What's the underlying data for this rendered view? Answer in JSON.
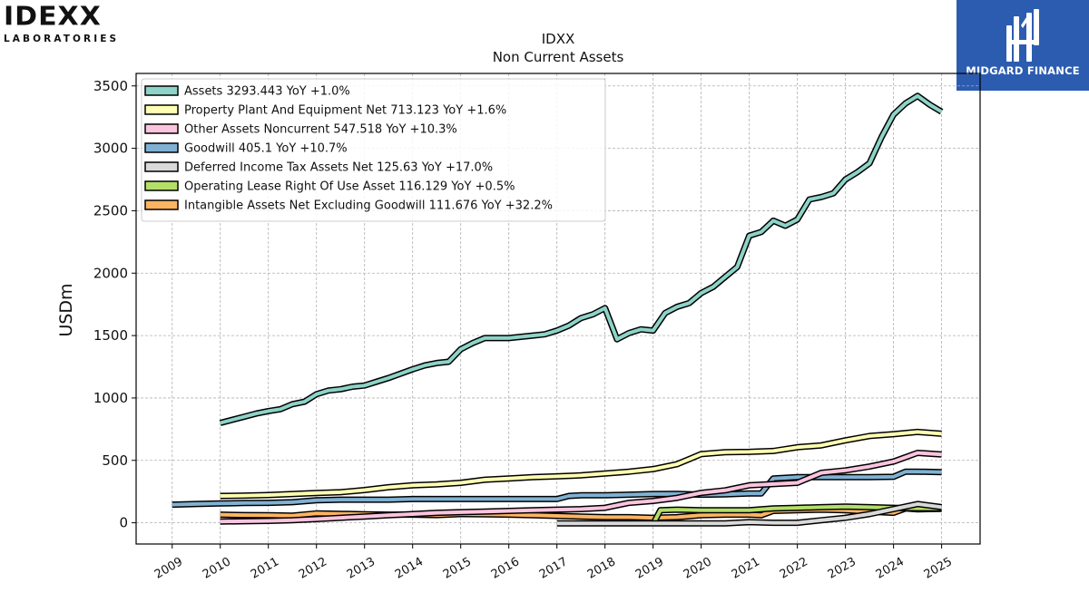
{
  "logos": {
    "left_main": "IDEXX",
    "left_sub": "LABORATORIES",
    "right_brand": "MIDGARD FINANCE",
    "right_bg": "#2b5cb0"
  },
  "chart_data": {
    "type": "line",
    "title": "IDXX",
    "subtitle": "Non Current  Assets",
    "ylabel": "USDm",
    "xlabel": "",
    "xlim": [
      2008.25,
      2025.8
    ],
    "ylim": [
      -170,
      3600
    ],
    "x_ticks": [
      "2009",
      "2010",
      "2011",
      "2012",
      "2013",
      "2014",
      "2015",
      "2016",
      "2017",
      "2018",
      "2019",
      "2020",
      "2021",
      "2022",
      "2023",
      "2024",
      "2025"
    ],
    "y_ticks": [
      0,
      500,
      1000,
      1500,
      2000,
      2500,
      3000,
      3500
    ],
    "grid": true,
    "legend_position": "top-left",
    "series": [
      {
        "name": "Assets",
        "legend": "Assets  3293.443 YoY +1.0%",
        "color": "#8dd3c7",
        "points": [
          [
            2010.0,
            800
          ],
          [
            2010.25,
            825
          ],
          [
            2010.5,
            850
          ],
          [
            2010.75,
            875
          ],
          [
            2011.0,
            895
          ],
          [
            2011.25,
            910
          ],
          [
            2011.5,
            950
          ],
          [
            2011.75,
            970
          ],
          [
            2012.0,
            1030
          ],
          [
            2012.25,
            1060
          ],
          [
            2012.5,
            1070
          ],
          [
            2012.75,
            1090
          ],
          [
            2013.0,
            1100
          ],
          [
            2013.25,
            1130
          ],
          [
            2013.5,
            1160
          ],
          [
            2013.75,
            1195
          ],
          [
            2014.0,
            1230
          ],
          [
            2014.25,
            1260
          ],
          [
            2014.5,
            1280
          ],
          [
            2014.75,
            1290
          ],
          [
            2015.0,
            1390
          ],
          [
            2015.25,
            1440
          ],
          [
            2015.5,
            1480
          ],
          [
            2015.75,
            1480
          ],
          [
            2016.0,
            1480
          ],
          [
            2016.25,
            1490
          ],
          [
            2016.5,
            1500
          ],
          [
            2016.75,
            1510
          ],
          [
            2017.0,
            1540
          ],
          [
            2017.25,
            1580
          ],
          [
            2017.5,
            1640
          ],
          [
            2017.75,
            1670
          ],
          [
            2018.0,
            1720
          ],
          [
            2018.25,
            1470
          ],
          [
            2018.5,
            1520
          ],
          [
            2018.75,
            1550
          ],
          [
            2019.0,
            1540
          ],
          [
            2019.25,
            1680
          ],
          [
            2019.5,
            1730
          ],
          [
            2019.75,
            1760
          ],
          [
            2020.0,
            1840
          ],
          [
            2020.25,
            1890
          ],
          [
            2020.5,
            1970
          ],
          [
            2020.75,
            2050
          ],
          [
            2021.0,
            2300
          ],
          [
            2021.25,
            2330
          ],
          [
            2021.5,
            2420
          ],
          [
            2021.75,
            2380
          ],
          [
            2022.0,
            2430
          ],
          [
            2022.25,
            2590
          ],
          [
            2022.5,
            2610
          ],
          [
            2022.75,
            2640
          ],
          [
            2023.0,
            2750
          ],
          [
            2023.25,
            2810
          ],
          [
            2023.5,
            2880
          ],
          [
            2023.75,
            3090
          ],
          [
            2024.0,
            3270
          ],
          [
            2024.25,
            3360
          ],
          [
            2024.5,
            3420
          ],
          [
            2024.75,
            3350
          ],
          [
            2025.0,
            3293
          ]
        ]
      },
      {
        "name": "Property Plant And Equipment Net",
        "legend": "Property Plant And Equipment Net  713.123 YoY +1.6%",
        "color": "#ffffb3",
        "points": [
          [
            2010.0,
            215
          ],
          [
            2010.5,
            218
          ],
          [
            2011.0,
            222
          ],
          [
            2011.5,
            230
          ],
          [
            2012.0,
            238
          ],
          [
            2012.5,
            245
          ],
          [
            2013.0,
            262
          ],
          [
            2013.5,
            285
          ],
          [
            2014.0,
            300
          ],
          [
            2014.5,
            308
          ],
          [
            2015.0,
            320
          ],
          [
            2015.5,
            345
          ],
          [
            2016.0,
            355
          ],
          [
            2016.5,
            365
          ],
          [
            2017.0,
            372
          ],
          [
            2017.5,
            380
          ],
          [
            2018.0,
            395
          ],
          [
            2018.5,
            410
          ],
          [
            2019.0,
            430
          ],
          [
            2019.5,
            470
          ],
          [
            2020.0,
            550
          ],
          [
            2020.5,
            565
          ],
          [
            2021.0,
            568
          ],
          [
            2021.5,
            575
          ],
          [
            2022.0,
            605
          ],
          [
            2022.5,
            620
          ],
          [
            2023.0,
            660
          ],
          [
            2023.5,
            695
          ],
          [
            2024.0,
            710
          ],
          [
            2024.5,
            728
          ],
          [
            2025.0,
            713
          ]
        ]
      },
      {
        "name": "Other Assets Noncurrent",
        "legend": "Other Assets Noncurrent  547.518 YoY +10.3%",
        "color": "#fbc4de",
        "points": [
          [
            2010.0,
            10
          ],
          [
            2010.5,
            12
          ],
          [
            2011.0,
            15
          ],
          [
            2011.5,
            20
          ],
          [
            2012.0,
            30
          ],
          [
            2012.5,
            40
          ],
          [
            2013.0,
            50
          ],
          [
            2013.5,
            60
          ],
          [
            2014.0,
            70
          ],
          [
            2014.5,
            80
          ],
          [
            2015.0,
            85
          ],
          [
            2015.5,
            90
          ],
          [
            2016.0,
            95
          ],
          [
            2016.5,
            100
          ],
          [
            2017.0,
            105
          ],
          [
            2017.5,
            110
          ],
          [
            2018.0,
            120
          ],
          [
            2018.5,
            160
          ],
          [
            2019.0,
            175
          ],
          [
            2019.5,
            200
          ],
          [
            2020.0,
            240
          ],
          [
            2020.5,
            260
          ],
          [
            2021.0,
            300
          ],
          [
            2021.5,
            310
          ],
          [
            2022.0,
            320
          ],
          [
            2022.5,
            400
          ],
          [
            2023.0,
            420
          ],
          [
            2023.5,
            450
          ],
          [
            2024.0,
            490
          ],
          [
            2024.5,
            560
          ],
          [
            2025.0,
            548
          ]
        ]
      },
      {
        "name": "Goodwill",
        "legend": "Goodwill  405.1 YoY +10.7%",
        "color": "#80b1d3",
        "points": [
          [
            2009.0,
            145
          ],
          [
            2009.5,
            150
          ],
          [
            2010.0,
            155
          ],
          [
            2010.5,
            158
          ],
          [
            2011.0,
            160
          ],
          [
            2011.5,
            165
          ],
          [
            2012.0,
            180
          ],
          [
            2012.5,
            185
          ],
          [
            2013.0,
            185
          ],
          [
            2013.5,
            185
          ],
          [
            2014.0,
            190
          ],
          [
            2014.5,
            190
          ],
          [
            2015.0,
            190
          ],
          [
            2015.5,
            190
          ],
          [
            2016.0,
            190
          ],
          [
            2016.5,
            190
          ],
          [
            2017.0,
            190
          ],
          [
            2017.25,
            215
          ],
          [
            2017.5,
            220
          ],
          [
            2018.0,
            220
          ],
          [
            2018.5,
            225
          ],
          [
            2019.0,
            230
          ],
          [
            2019.5,
            232
          ],
          [
            2020.0,
            225
          ],
          [
            2020.5,
            228
          ],
          [
            2021.0,
            235
          ],
          [
            2021.25,
            235
          ],
          [
            2021.5,
            355
          ],
          [
            2022.0,
            365
          ],
          [
            2022.5,
            365
          ],
          [
            2023.0,
            365
          ],
          [
            2023.5,
            365
          ],
          [
            2024.0,
            368
          ],
          [
            2024.25,
            410
          ],
          [
            2024.5,
            410
          ],
          [
            2025.0,
            405
          ]
        ]
      },
      {
        "name": "Deferred Income Tax Assets Net",
        "legend": "Deferred Income Tax Assets Net  125.63 YoY +17.0%",
        "color": "#d9d9d9",
        "points": [
          [
            2017.0,
            -5
          ],
          [
            2017.5,
            -5
          ],
          [
            2018.0,
            -5
          ],
          [
            2018.5,
            -5
          ],
          [
            2019.0,
            -5
          ],
          [
            2019.5,
            -5
          ],
          [
            2020.0,
            -5
          ],
          [
            2020.5,
            -5
          ],
          [
            2021.0,
            5
          ],
          [
            2021.5,
            0
          ],
          [
            2022.0,
            0
          ],
          [
            2022.5,
            20
          ],
          [
            2023.0,
            40
          ],
          [
            2023.5,
            70
          ],
          [
            2024.0,
            110
          ],
          [
            2024.5,
            150
          ],
          [
            2025.0,
            126
          ]
        ]
      },
      {
        "name": "Operating Lease Right Of Use Asset",
        "legend": "Operating Lease Right Of Use Asset  116.129 YoY +0.5%",
        "color": "#b3de69",
        "points": [
          [
            2019.0,
            -10
          ],
          [
            2019.15,
            100
          ],
          [
            2019.5,
            105
          ],
          [
            2020.0,
            100
          ],
          [
            2020.5,
            100
          ],
          [
            2021.0,
            100
          ],
          [
            2021.5,
            115
          ],
          [
            2022.0,
            120
          ],
          [
            2022.5,
            125
          ],
          [
            2023.0,
            130
          ],
          [
            2023.5,
            125
          ],
          [
            2024.0,
            120
          ],
          [
            2024.5,
            116
          ],
          [
            2025.0,
            116
          ]
        ]
      },
      {
        "name": "Intangible Assets Net Excluding Goodwill",
        "legend": "Intangible Assets Net Excluding Goodwill  111.676 YoY +32.2%",
        "color": "#fdb462",
        "points": [
          [
            2010.0,
            65
          ],
          [
            2010.5,
            62
          ],
          [
            2011.0,
            60
          ],
          [
            2011.5,
            57
          ],
          [
            2012.0,
            75
          ],
          [
            2012.5,
            72
          ],
          [
            2013.0,
            68
          ],
          [
            2013.5,
            65
          ],
          [
            2014.0,
            65
          ],
          [
            2014.5,
            62
          ],
          [
            2015.0,
            70
          ],
          [
            2015.5,
            68
          ],
          [
            2016.0,
            65
          ],
          [
            2016.5,
            60
          ],
          [
            2017.0,
            55
          ],
          [
            2017.5,
            50
          ],
          [
            2018.0,
            45
          ],
          [
            2018.5,
            45
          ],
          [
            2019.0,
            40
          ],
          [
            2019.5,
            45
          ],
          [
            2020.0,
            60
          ],
          [
            2020.5,
            65
          ],
          [
            2021.0,
            65
          ],
          [
            2021.25,
            60
          ],
          [
            2021.5,
            95
          ],
          [
            2022.0,
            100
          ],
          [
            2022.5,
            105
          ],
          [
            2023.0,
            100
          ],
          [
            2023.5,
            90
          ],
          [
            2024.0,
            80
          ],
          [
            2024.25,
            115
          ],
          [
            2024.5,
            108
          ],
          [
            2025.0,
            112
          ]
        ]
      }
    ]
  }
}
